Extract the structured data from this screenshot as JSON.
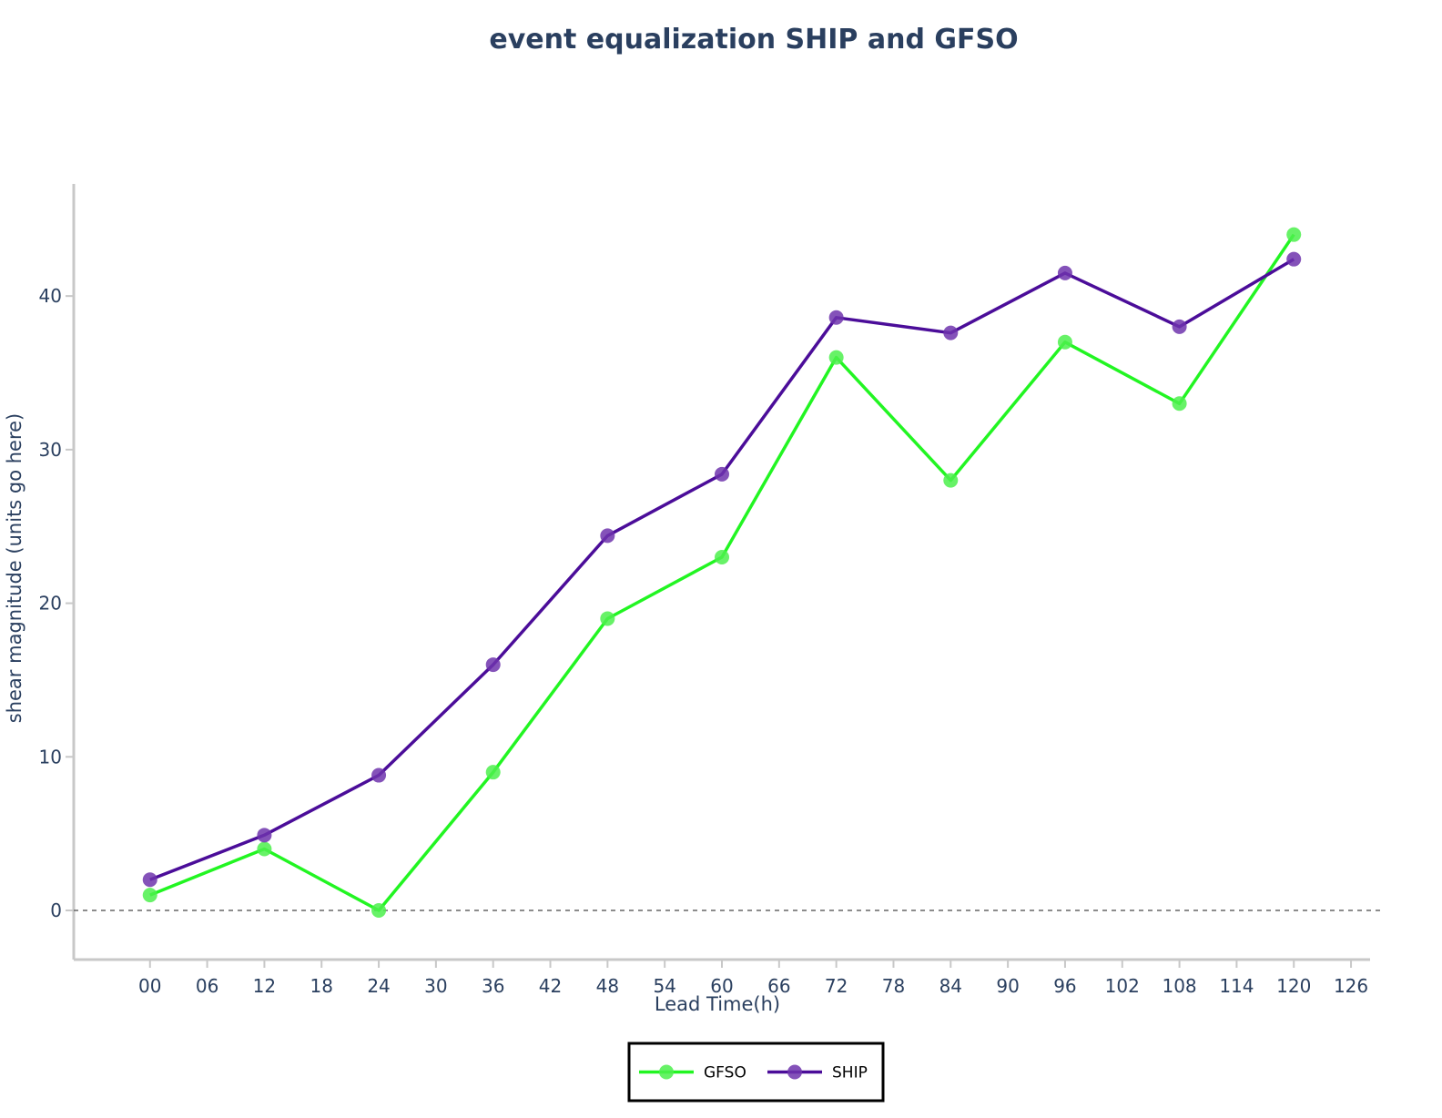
{
  "chart_data": {
    "type": "line",
    "title": "event equalization SHIP and GFSO",
    "xlabel": "Lead Time(h)",
    "ylabel": "shear magnitude (units go here)",
    "x_ticks": [
      "00",
      "06",
      "12",
      "18",
      "24",
      "30",
      "36",
      "42",
      "48",
      "54",
      "60",
      "66",
      "72",
      "78",
      "84",
      "90",
      "96",
      "102",
      "108",
      "114",
      "120",
      "126"
    ],
    "x_tick_values": [
      0,
      6,
      12,
      18,
      24,
      30,
      36,
      42,
      48,
      54,
      60,
      66,
      72,
      78,
      84,
      90,
      96,
      102,
      108,
      114,
      120,
      126
    ],
    "y_ticks": [
      0,
      10,
      20,
      30,
      40
    ],
    "xlim": [
      -8,
      128
    ],
    "ylim": [
      -3.2,
      47.3
    ],
    "zero_line": "dashed",
    "grid": false,
    "legend_position": "bottom-center",
    "series": [
      {
        "name": "GFSO",
        "color": "#22f522",
        "marker_color": "#4cf04c",
        "x": [
          0,
          12,
          24,
          36,
          48,
          60,
          72,
          84,
          96,
          108,
          120
        ],
        "values": [
          1,
          4,
          0,
          9,
          19,
          23,
          36,
          28,
          37,
          33,
          44
        ]
      },
      {
        "name": "SHIP",
        "color": "#4b0d99",
        "marker_color": "#6e34ad",
        "x": [
          0,
          12,
          24,
          36,
          48,
          60,
          72,
          84,
          96,
          108,
          120
        ],
        "values": [
          2,
          4.9,
          8.8,
          16,
          24.4,
          28.4,
          38.6,
          37.6,
          41.5,
          38,
          42.4
        ]
      }
    ]
  }
}
